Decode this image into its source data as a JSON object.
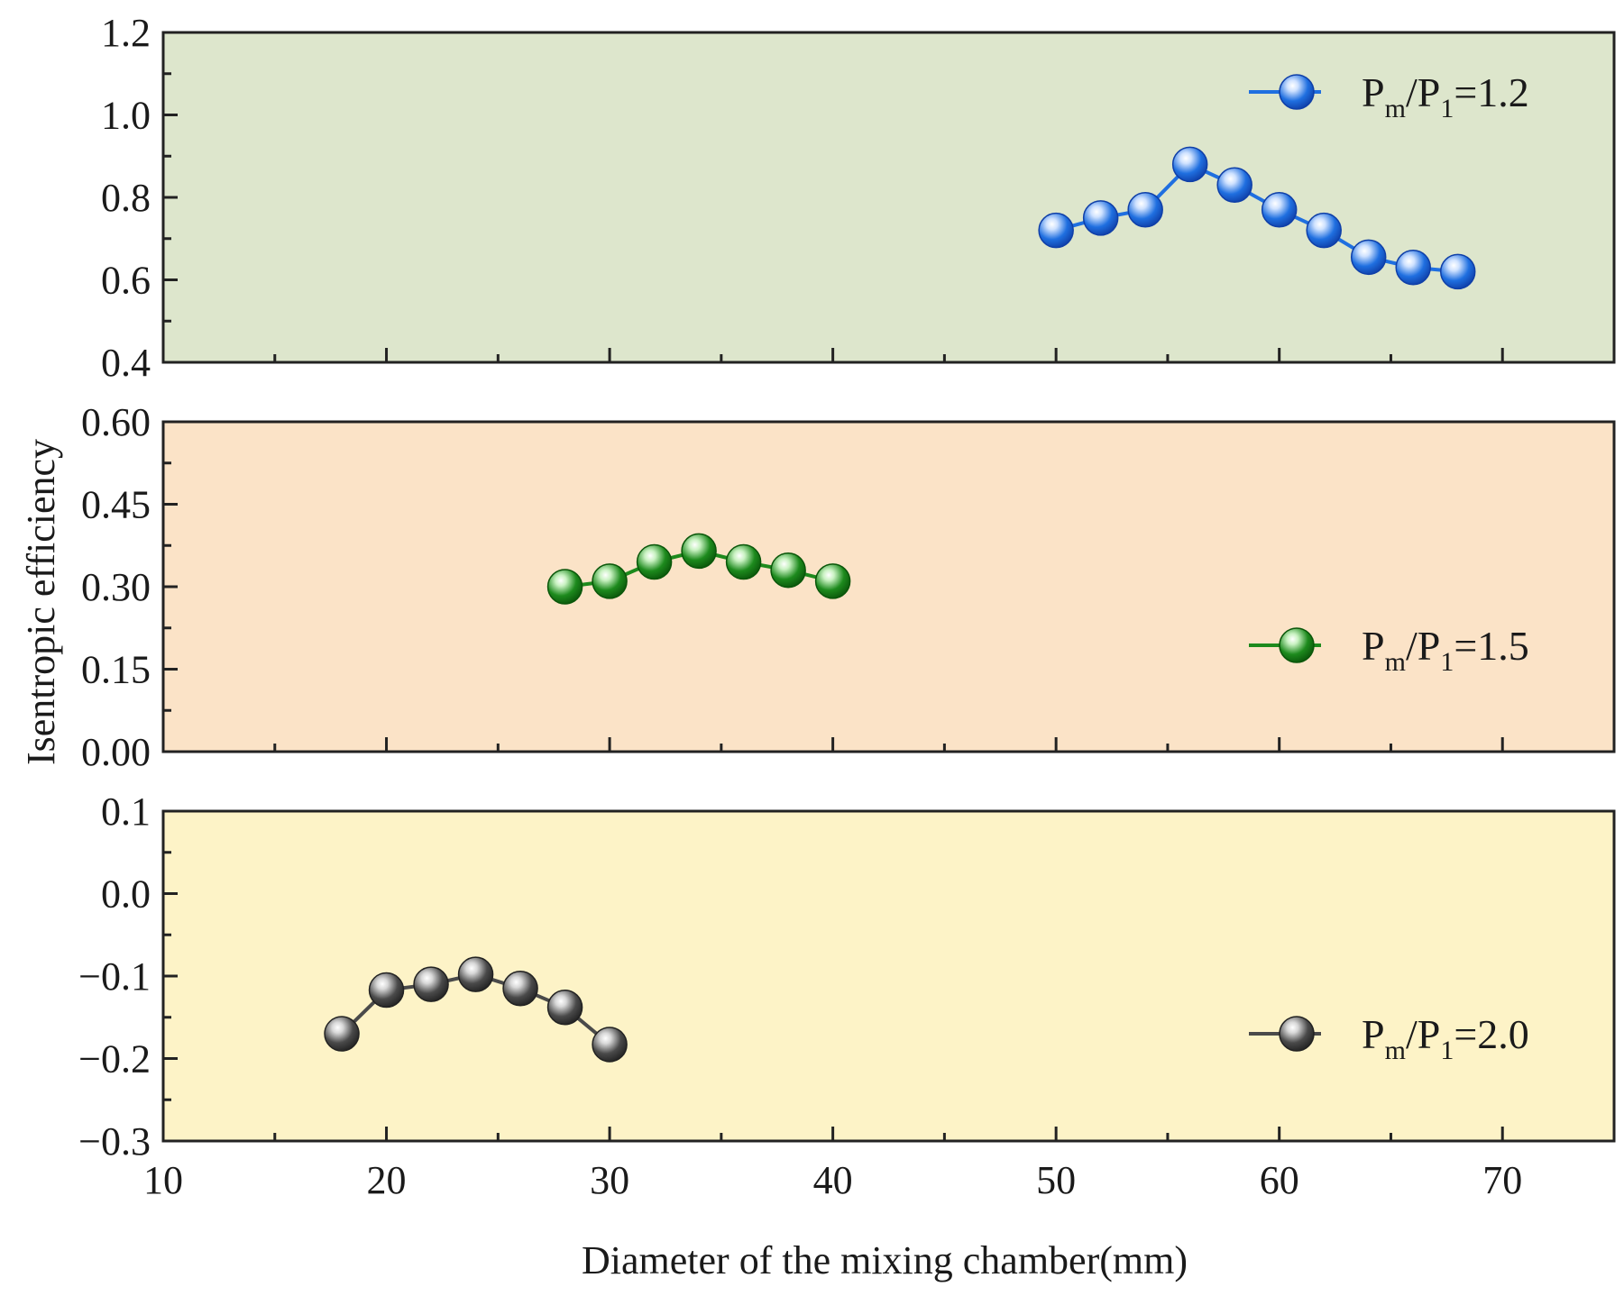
{
  "chart_data": {
    "type": "line",
    "xlabel": "Diameter of the mixing chamber(mm)",
    "ylabel": "Isentropic efficiency",
    "xlim": [
      10,
      75
    ],
    "x_ticks": [
      "10",
      "20",
      "30",
      "40",
      "50",
      "60",
      "70"
    ],
    "panels": [
      {
        "ylim": [
          0.4,
          1.2
        ],
        "y_ticks": [
          "1.2",
          "1.0",
          "0.8",
          "0.6",
          "0.4"
        ],
        "background": "#dde6cc",
        "series": {
          "name": "Pm/P1=1.2",
          "legend": {
            "main": "P",
            "sub1": "m",
            "mid": "/P",
            "sub2": "1",
            "tail": "=1.2"
          },
          "color": "#1f6fe0",
          "marker_light": "#cfe2ff",
          "marker_dark": "#0f3fa8",
          "x": [
            50,
            52,
            54,
            56,
            58,
            60,
            62,
            64,
            66,
            68
          ],
          "y": [
            0.72,
            0.75,
            0.77,
            0.88,
            0.83,
            0.77,
            0.72,
            0.655,
            0.63,
            0.62
          ]
        }
      },
      {
        "ylim": [
          0.0,
          0.6
        ],
        "y_ticks": [
          "0.60",
          "0.45",
          "0.30",
          "0.15",
          "0.00"
        ],
        "background": "#fbe3c7",
        "series": {
          "name": "Pm/P1=1.5",
          "legend": {
            "main": "P",
            "sub1": "m",
            "mid": "/P",
            "sub2": "1",
            "tail": "=1.5"
          },
          "color": "#1d8a1d",
          "marker_light": "#c9f2c2",
          "marker_dark": "#0a560a",
          "x": [
            28,
            30,
            32,
            34,
            36,
            38,
            40
          ],
          "y": [
            0.3,
            0.31,
            0.345,
            0.365,
            0.345,
            0.33,
            0.31
          ]
        }
      },
      {
        "ylim": [
          -0.3,
          0.1
        ],
        "y_ticks": [
          "0.1",
          "0.0",
          "−0.1",
          "−0.2",
          "−0.3"
        ],
        "background": "#fdf3c7",
        "series": {
          "name": "Pm/P1=2.0",
          "legend": {
            "main": "P",
            "sub1": "m",
            "mid": "/P",
            "sub2": "1",
            "tail": "=2.0"
          },
          "color": "#4a4a4a",
          "marker_light": "#d8d8d8",
          "marker_dark": "#222222",
          "x": [
            18,
            20,
            22,
            24,
            26,
            28,
            30
          ],
          "y": [
            -0.17,
            -0.117,
            -0.11,
            -0.098,
            -0.115,
            -0.138,
            -0.183
          ]
        }
      }
    ]
  }
}
